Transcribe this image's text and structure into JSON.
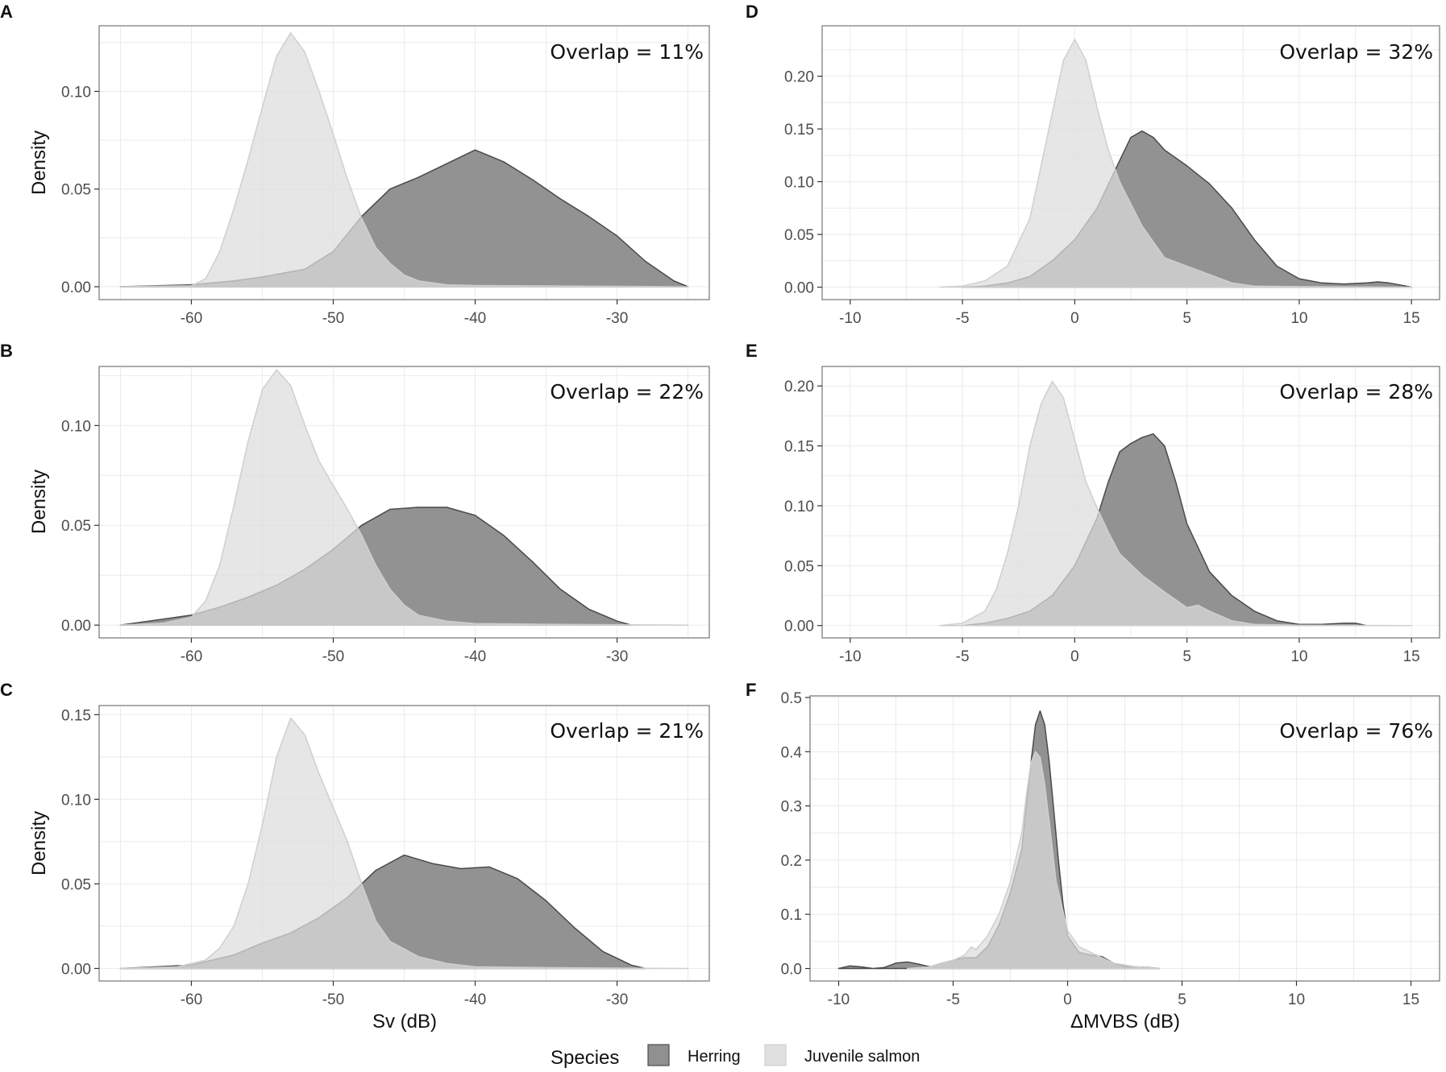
{
  "chart_data": [
    {
      "panel": "A",
      "type": "area",
      "overlap_label": "Overlap = 11%",
      "xlabel": "",
      "ylabel": "Density",
      "xlim": [
        -66.5,
        -23.5
      ],
      "ylim": [
        -0.0066,
        0.1336
      ],
      "xticks": [
        -60,
        -50,
        -40,
        -30
      ],
      "xtick_labels": [
        "-60",
        "-50",
        "-40",
        "-30"
      ],
      "yticks": [
        0,
        0.05,
        0.1
      ],
      "ytick_labels": [
        "0.00",
        "0.05",
        "0.10"
      ],
      "series": [
        {
          "name": "Herring",
          "x": [
            -65,
            -60,
            -57,
            -55,
            -52,
            -50,
            -48,
            -46,
            -44,
            -42,
            -40,
            -38,
            -36,
            -34,
            -32,
            -30,
            -28,
            -26,
            -25
          ],
          "y": [
            0,
            0.001,
            0.003,
            0.005,
            0.009,
            0.018,
            0.036,
            0.05,
            0.056,
            0.063,
            0.07,
            0.064,
            0.055,
            0.045,
            0.036,
            0.026,
            0.013,
            0.003,
            0
          ]
        },
        {
          "name": "Juvenile salmon",
          "x": [
            -65,
            -60,
            -59,
            -58,
            -57,
            -56,
            -55,
            -54,
            -53,
            -52,
            -51,
            -50,
            -49,
            -48,
            -47,
            -46,
            -45,
            -44,
            -42,
            -40,
            -35,
            -30,
            -25
          ],
          "y": [
            0,
            0.0005,
            0.004,
            0.018,
            0.04,
            0.065,
            0.092,
            0.118,
            0.13,
            0.12,
            0.1,
            0.078,
            0.055,
            0.035,
            0.02,
            0.012,
            0.006,
            0.003,
            0.001,
            0.0006,
            0.0004,
            0.0002,
            0
          ]
        }
      ]
    },
    {
      "panel": "B",
      "type": "area",
      "overlap_label": "Overlap = 22%",
      "xlabel": "",
      "ylabel": "Density",
      "xlim": [
        -66.5,
        -23.5
      ],
      "ylim": [
        -0.0064,
        0.1296
      ],
      "xticks": [
        -60,
        -50,
        -40,
        -30
      ],
      "xtick_labels": [
        "-60",
        "-50",
        "-40",
        "-30"
      ],
      "yticks": [
        0,
        0.05,
        0.1
      ],
      "ytick_labels": [
        "0.00",
        "0.05",
        "0.10"
      ],
      "series": [
        {
          "name": "Herring",
          "x": [
            -65,
            -63,
            -60,
            -58,
            -56,
            -54,
            -52,
            -50,
            -48,
            -46,
            -44,
            -42,
            -40,
            -38,
            -36,
            -34,
            -32,
            -30,
            -29
          ],
          "y": [
            0,
            0.002,
            0.005,
            0.009,
            0.014,
            0.02,
            0.028,
            0.038,
            0.05,
            0.058,
            0.059,
            0.059,
            0.055,
            0.045,
            0.032,
            0.018,
            0.008,
            0.002,
            0
          ]
        },
        {
          "name": "Juvenile salmon",
          "x": [
            -65,
            -62,
            -60,
            -59,
            -58,
            -57,
            -56,
            -55,
            -54,
            -53,
            -52,
            -51,
            -50,
            -49,
            -48,
            -47,
            -46,
            -45,
            -44,
            -42,
            -40,
            -35,
            -30,
            -25
          ],
          "y": [
            0,
            0.001,
            0.004,
            0.012,
            0.03,
            0.06,
            0.092,
            0.118,
            0.128,
            0.12,
            0.1,
            0.082,
            0.07,
            0.058,
            0.045,
            0.03,
            0.018,
            0.01,
            0.005,
            0.002,
            0.0008,
            0.0004,
            0.0002,
            0
          ]
        }
      ]
    },
    {
      "panel": "C",
      "type": "area",
      "overlap_label": "Overlap = 21%",
      "xlabel": "Sv (dB)",
      "ylabel": "Density",
      "xlim": [
        -66.5,
        -23.5
      ],
      "ylim": [
        -0.0074,
        0.1554
      ],
      "xticks": [
        -60,
        -50,
        -40,
        -30
      ],
      "xtick_labels": [
        "-60",
        "-50",
        "-40",
        "-30"
      ],
      "yticks": [
        0,
        0.05,
        0.1,
        0.15
      ],
      "ytick_labels": [
        "0.00",
        "0.05",
        "0.10",
        "0.15"
      ],
      "series": [
        {
          "name": "Herring",
          "x": [
            -65,
            -60,
            -57,
            -55,
            -53,
            -51,
            -49,
            -47,
            -45,
            -43,
            -41,
            -39,
            -37,
            -35,
            -33,
            -31,
            -29,
            -28
          ],
          "y": [
            0,
            0.002,
            0.008,
            0.015,
            0.021,
            0.03,
            0.042,
            0.058,
            0.067,
            0.062,
            0.059,
            0.06,
            0.053,
            0.04,
            0.024,
            0.01,
            0.002,
            0
          ]
        },
        {
          "name": "Juvenile salmon",
          "x": [
            -65,
            -61,
            -59,
            -58,
            -57,
            -56,
            -55,
            -54,
            -53,
            -52,
            -51,
            -50,
            -49,
            -48,
            -47,
            -46,
            -44,
            -42,
            -40,
            -35,
            -30,
            -25
          ],
          "y": [
            0,
            0.001,
            0.005,
            0.012,
            0.025,
            0.05,
            0.085,
            0.125,
            0.148,
            0.138,
            0.115,
            0.095,
            0.075,
            0.05,
            0.028,
            0.016,
            0.007,
            0.003,
            0.001,
            0.0005,
            0.0002,
            0
          ]
        }
      ]
    },
    {
      "panel": "D",
      "type": "area",
      "overlap_label": "Overlap = 32%",
      "xlabel": "",
      "ylabel": "",
      "xlim": [
        -11.25,
        16.25
      ],
      "ylim": [
        -0.0118,
        0.2478
      ],
      "xticks": [
        -10,
        -5,
        0,
        5,
        10,
        15
      ],
      "xtick_labels": [
        "-10",
        "-5",
        "0",
        "5",
        "10",
        "15"
      ],
      "yticks": [
        0,
        0.05,
        0.1,
        0.15,
        0.2
      ],
      "ytick_labels": [
        "0.00",
        "0.05",
        "0.10",
        "0.15",
        "0.20"
      ],
      "series": [
        {
          "name": "Herring",
          "x": [
            -5,
            -4,
            -3,
            -2,
            -1,
            0,
            1,
            2,
            2.5,
            3,
            3.5,
            4,
            5,
            6,
            7,
            8,
            9,
            10,
            11,
            12,
            13,
            13.5,
            14,
            15
          ],
          "y": [
            0,
            0.001,
            0.004,
            0.01,
            0.025,
            0.045,
            0.075,
            0.12,
            0.142,
            0.148,
            0.142,
            0.13,
            0.115,
            0.098,
            0.075,
            0.045,
            0.02,
            0.008,
            0.004,
            0.003,
            0.004,
            0.005,
            0.004,
            0
          ]
        },
        {
          "name": "Juvenile salmon",
          "x": [
            -6,
            -5,
            -4,
            -3,
            -2,
            -1,
            -0.5,
            0,
            0.5,
            1,
            1.5,
            2,
            3,
            4,
            5,
            6,
            7,
            8,
            10,
            15
          ],
          "y": [
            0,
            0.001,
            0.006,
            0.02,
            0.065,
            0.165,
            0.215,
            0.235,
            0.215,
            0.17,
            0.13,
            0.1,
            0.058,
            0.028,
            0.02,
            0.012,
            0.004,
            0.001,
            0.0005,
            0
          ]
        }
      ]
    },
    {
      "panel": "E",
      "type": "area",
      "overlap_label": "Overlap = 28%",
      "xlabel": "",
      "ylabel": "",
      "xlim": [
        -11.25,
        16.25
      ],
      "ylim": [
        -0.0103,
        0.2163
      ],
      "xticks": [
        -10,
        -5,
        0,
        5,
        10,
        15
      ],
      "xtick_labels": [
        "-10",
        "-5",
        "0",
        "5",
        "10",
        "15"
      ],
      "yticks": [
        0,
        0.05,
        0.1,
        0.15,
        0.2
      ],
      "ytick_labels": [
        "0.00",
        "0.05",
        "0.10",
        "0.15",
        "0.20"
      ],
      "series": [
        {
          "name": "Herring",
          "x": [
            -5,
            -4,
            -3,
            -2,
            -1,
            0,
            1,
            1.5,
            2,
            2.5,
            3,
            3.5,
            4,
            4.5,
            5,
            6,
            7,
            8,
            9,
            10,
            11,
            12,
            12.5,
            13
          ],
          "y": [
            0,
            0.002,
            0.006,
            0.012,
            0.025,
            0.05,
            0.09,
            0.12,
            0.145,
            0.152,
            0.157,
            0.16,
            0.15,
            0.12,
            0.085,
            0.045,
            0.025,
            0.012,
            0.004,
            0.001,
            0.001,
            0.002,
            0.002,
            0
          ]
        },
        {
          "name": "Juvenile salmon",
          "x": [
            -6,
            -5,
            -4,
            -3.5,
            -3,
            -2.5,
            -2,
            -1.5,
            -1,
            -0.5,
            0,
            0.5,
            1,
            1.5,
            2,
            3,
            4,
            5,
            5.5,
            6,
            7,
            8,
            10,
            15
          ],
          "y": [
            0,
            0.002,
            0.012,
            0.03,
            0.06,
            0.1,
            0.15,
            0.185,
            0.204,
            0.19,
            0.155,
            0.12,
            0.098,
            0.078,
            0.06,
            0.042,
            0.028,
            0.015,
            0.017,
            0.012,
            0.004,
            0.001,
            0.0003,
            0
          ]
        }
      ]
    },
    {
      "panel": "F",
      "type": "area",
      "overlap_label": "Overlap = 76%",
      "xlabel": "ΔMVBS (dB)",
      "ylabel": "",
      "xlim": [
        -11.25,
        16.25
      ],
      "ylim": [
        -0.023,
        0.503
      ],
      "xticks": [
        -10,
        -5,
        0,
        5,
        10,
        15
      ],
      "xtick_labels": [
        "-10",
        "-5",
        "0",
        "5",
        "10",
        "15"
      ],
      "yticks": [
        0,
        0.1,
        0.2,
        0.3,
        0.4,
        0.5
      ],
      "ytick_labels": [
        "0.0",
        "0.1",
        "0.2",
        "0.3",
        "0.4",
        "0.5"
      ],
      "series": [
        {
          "name": "Herring",
          "x": [
            -10,
            -9.5,
            -9,
            -8.5,
            -8,
            -7.5,
            -7,
            -6.5,
            -6,
            -5.5,
            -5,
            -4.5,
            -4,
            -3.5,
            -3,
            -2.5,
            -2,
            -1.8,
            -1.6,
            -1.4,
            -1.2,
            -1,
            -0.8,
            -0.6,
            -0.4,
            -0.2,
            0,
            0.5,
            1,
            1.5,
            2,
            2.5,
            3,
            3.5,
            4
          ],
          "y": [
            0,
            0.005,
            0.003,
            0,
            0.002,
            0.01,
            0.012,
            0.008,
            0.003,
            0.01,
            0.015,
            0.02,
            0.02,
            0.04,
            0.08,
            0.14,
            0.22,
            0.3,
            0.38,
            0.45,
            0.475,
            0.45,
            0.38,
            0.29,
            0.2,
            0.12,
            0.06,
            0.03,
            0.025,
            0.022,
            0.01,
            0.004,
            0.003,
            0.002,
            0
          ]
        },
        {
          "name": "Juvenile salmon",
          "x": [
            -7,
            -6,
            -5.5,
            -5,
            -4.5,
            -4.2,
            -4,
            -3.5,
            -3,
            -2.5,
            -2,
            -1.8,
            -1.6,
            -1.4,
            -1.2,
            -1,
            -0.8,
            -0.5,
            0,
            0.5,
            1,
            1.5,
            2,
            3,
            4
          ],
          "y": [
            0,
            0.003,
            0.01,
            0.015,
            0.025,
            0.04,
            0.035,
            0.06,
            0.1,
            0.16,
            0.25,
            0.32,
            0.38,
            0.4,
            0.39,
            0.34,
            0.27,
            0.16,
            0.07,
            0.04,
            0.03,
            0.02,
            0.01,
            0.003,
            0
          ]
        }
      ]
    }
  ],
  "legend": {
    "title": "Species",
    "items": [
      {
        "label": "Herring",
        "color": "#909090"
      },
      {
        "label": "Juvenile salmon",
        "color": "#e0e0e0"
      }
    ]
  },
  "colors": {
    "herring_fill": "#8c8c8c",
    "herring_line": "#4a4a4a",
    "salmon_fill": "#dcdcdc",
    "salmon_line": "#cfcfcf",
    "panel_border": "#7f7f7f",
    "grid": "#ebebeb"
  }
}
